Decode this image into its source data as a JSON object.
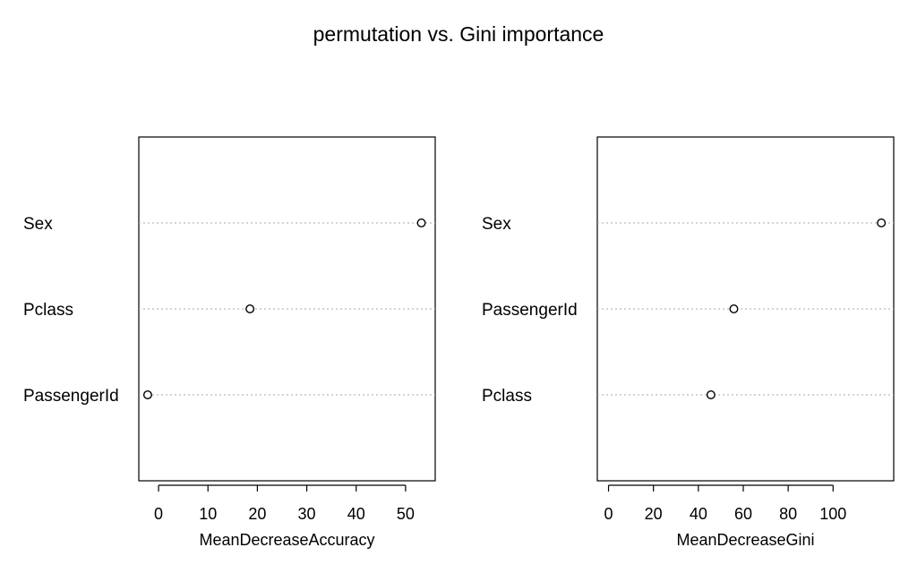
{
  "title": "permutation vs. Gini importance",
  "chart_data": [
    {
      "type": "scatter",
      "xlabel": "MeanDecreaseAccuracy",
      "xlim": [
        -4,
        56
      ],
      "xticks": [
        0,
        10,
        20,
        30,
        40,
        50
      ],
      "categories": [
        "Sex",
        "Pclass",
        "PassengerId"
      ],
      "values": [
        53.2,
        18.5,
        -2.2
      ],
      "grid": "dotted horizontal"
    },
    {
      "type": "scatter",
      "xlabel": "MeanDecreaseGini",
      "xlim": [
        -5,
        127
      ],
      "xticks": [
        0,
        20,
        40,
        60,
        80,
        100
      ],
      "categories": [
        "Sex",
        "PassengerId",
        "Pclass"
      ],
      "values": [
        121.5,
        55.8,
        45.6
      ],
      "grid": "dotted horizontal"
    }
  ]
}
